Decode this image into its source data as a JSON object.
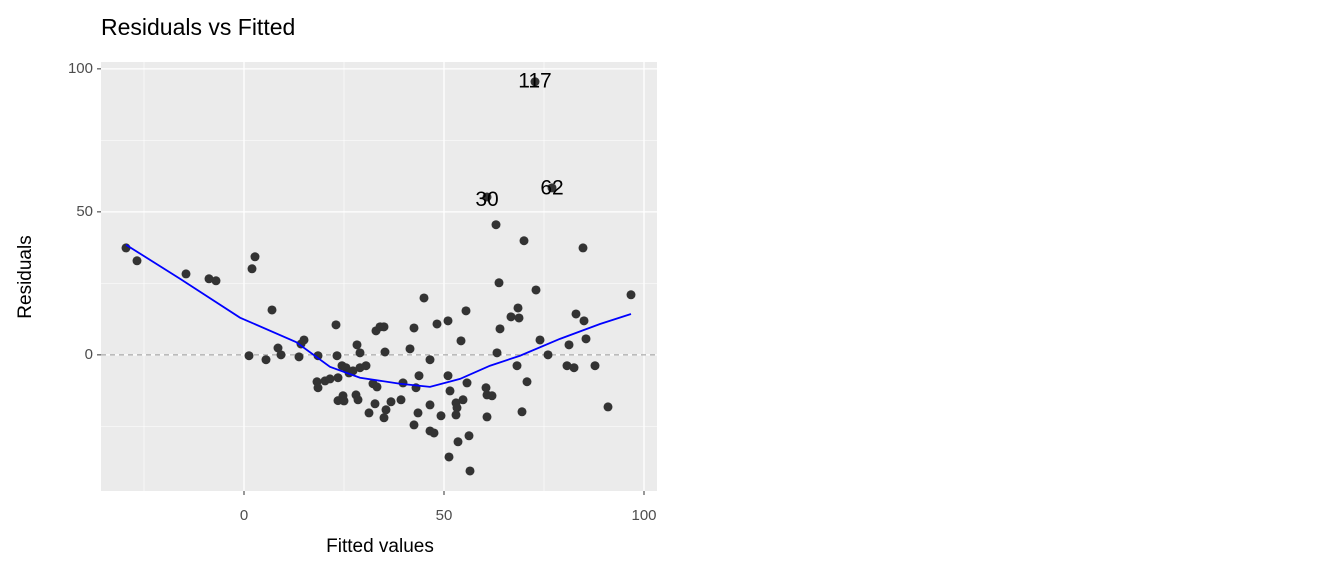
{
  "chart_data": {
    "type": "scatter",
    "title": "Residuals vs Fitted",
    "x_label": "Fitted values",
    "y_label": "Residuals",
    "xlim": [
      -35.75,
      103.25
    ],
    "ylim": [
      -47.6,
      102.4
    ],
    "xticks": [
      0,
      50,
      100
    ],
    "yticks": [
      0,
      50,
      100
    ],
    "xminor": [
      -25,
      25,
      75
    ],
    "yminor": [
      -25,
      25,
      75
    ],
    "grid": true,
    "hline": 0,
    "point_color": "#333333",
    "points": {
      "x": [
        -29.5,
        -26.75,
        -14.5,
        -8.75,
        -7,
        1.25,
        2,
        2.75,
        5.5,
        7,
        8.5,
        9.25,
        13.75,
        14.25,
        15,
        18.5,
        18.25,
        18.5,
        20.25,
        21.5,
        23,
        23.25,
        23.5,
        23.5,
        24.5,
        24.75,
        25,
        25.5,
        26.25,
        27.25,
        28.25,
        28,
        28.5,
        29,
        29,
        30.5,
        31.25,
        32.25,
        33,
        33.25,
        32.75,
        34,
        35,
        35.25,
        35,
        35.5,
        36.75,
        39.25,
        39.75,
        41.5,
        42.5,
        42.5,
        43,
        43.5,
        43.75,
        45,
        46.5,
        46.5,
        46.5,
        47.5,
        48.25,
        49.25,
        51,
        51,
        51.25,
        51.5,
        53,
        53,
        53.25,
        53.5,
        54.25,
        54.75,
        55.5,
        55.75,
        56.25,
        56.5,
        60.75,
        60.5,
        60.75,
        60.75,
        62,
        63,
        63.25,
        63.75,
        64,
        66.75,
        68.25,
        68.5,
        68.75,
        69.5,
        70,
        70.75,
        72.75,
        73,
        74,
        76,
        77,
        80.75,
        81.25,
        82.5,
        83,
        84.75,
        85,
        85.5,
        87.75,
        91,
        96.75
      ],
      "y": [
        37.4,
        32.9,
        28.3,
        26.6,
        25.9,
        -0.3,
        30.1,
        34.3,
        -1.7,
        15.7,
        2.4,
        0,
        -0.7,
        3.8,
        5.2,
        -0.3,
        -9.4,
        -11.5,
        -9.1,
        -8.4,
        10.5,
        -0.3,
        -8,
        -16,
        -3.8,
        -14.3,
        -16.1,
        -4.5,
        -6.3,
        -5.6,
        3.5,
        -14,
        -15.7,
        0.7,
        -4.5,
        -3.8,
        -20.3,
        -10.1,
        8.4,
        -11.2,
        -17.1,
        9.8,
        9.8,
        1,
        -22,
        -19.2,
        -16.4,
        -15.7,
        -9.8,
        2.1,
        9.4,
        -24.5,
        -11.5,
        -20.3,
        -7.3,
        19.9,
        -1.7,
        -17.5,
        -26.6,
        -27.3,
        10.8,
        -21.3,
        11.9,
        -7.3,
        -35.7,
        -12.6,
        -16.8,
        -21,
        -18.5,
        -30.4,
        4.9,
        -15.7,
        15.4,
        -9.8,
        -28.3,
        -40.6,
        55.2,
        -11.5,
        -21.7,
        -14,
        -14.3,
        45.5,
        0.7,
        25.2,
        9.1,
        13.3,
        -3.8,
        16.4,
        12.9,
        -19.9,
        39.9,
        -9.4,
        95.5,
        22.7,
        5.2,
        0,
        58.4,
        -3.8,
        3.5,
        -4.5,
        14.3,
        37.4,
        11.9,
        5.6,
        -3.8,
        -18.2,
        21
      ]
    },
    "smooth": {
      "color": "#0000ff",
      "x": [
        -29.5,
        -16,
        -1,
        13,
        21.5,
        29,
        39,
        46.5,
        54,
        61.5,
        69,
        79,
        89,
        96.75
      ],
      "y": [
        38.5,
        26.6,
        13,
        4.5,
        -4.2,
        -8,
        -10.1,
        -11.2,
        -8.4,
        -3.8,
        -0.3,
        5.6,
        10.8,
        14.3
      ]
    },
    "point_labels": [
      {
        "label": "117",
        "x": 72.75,
        "y": 95.5
      },
      {
        "label": "30",
        "x": 60.75,
        "y": 54
      },
      {
        "label": "62",
        "x": 77,
        "y": 58
      }
    ]
  }
}
